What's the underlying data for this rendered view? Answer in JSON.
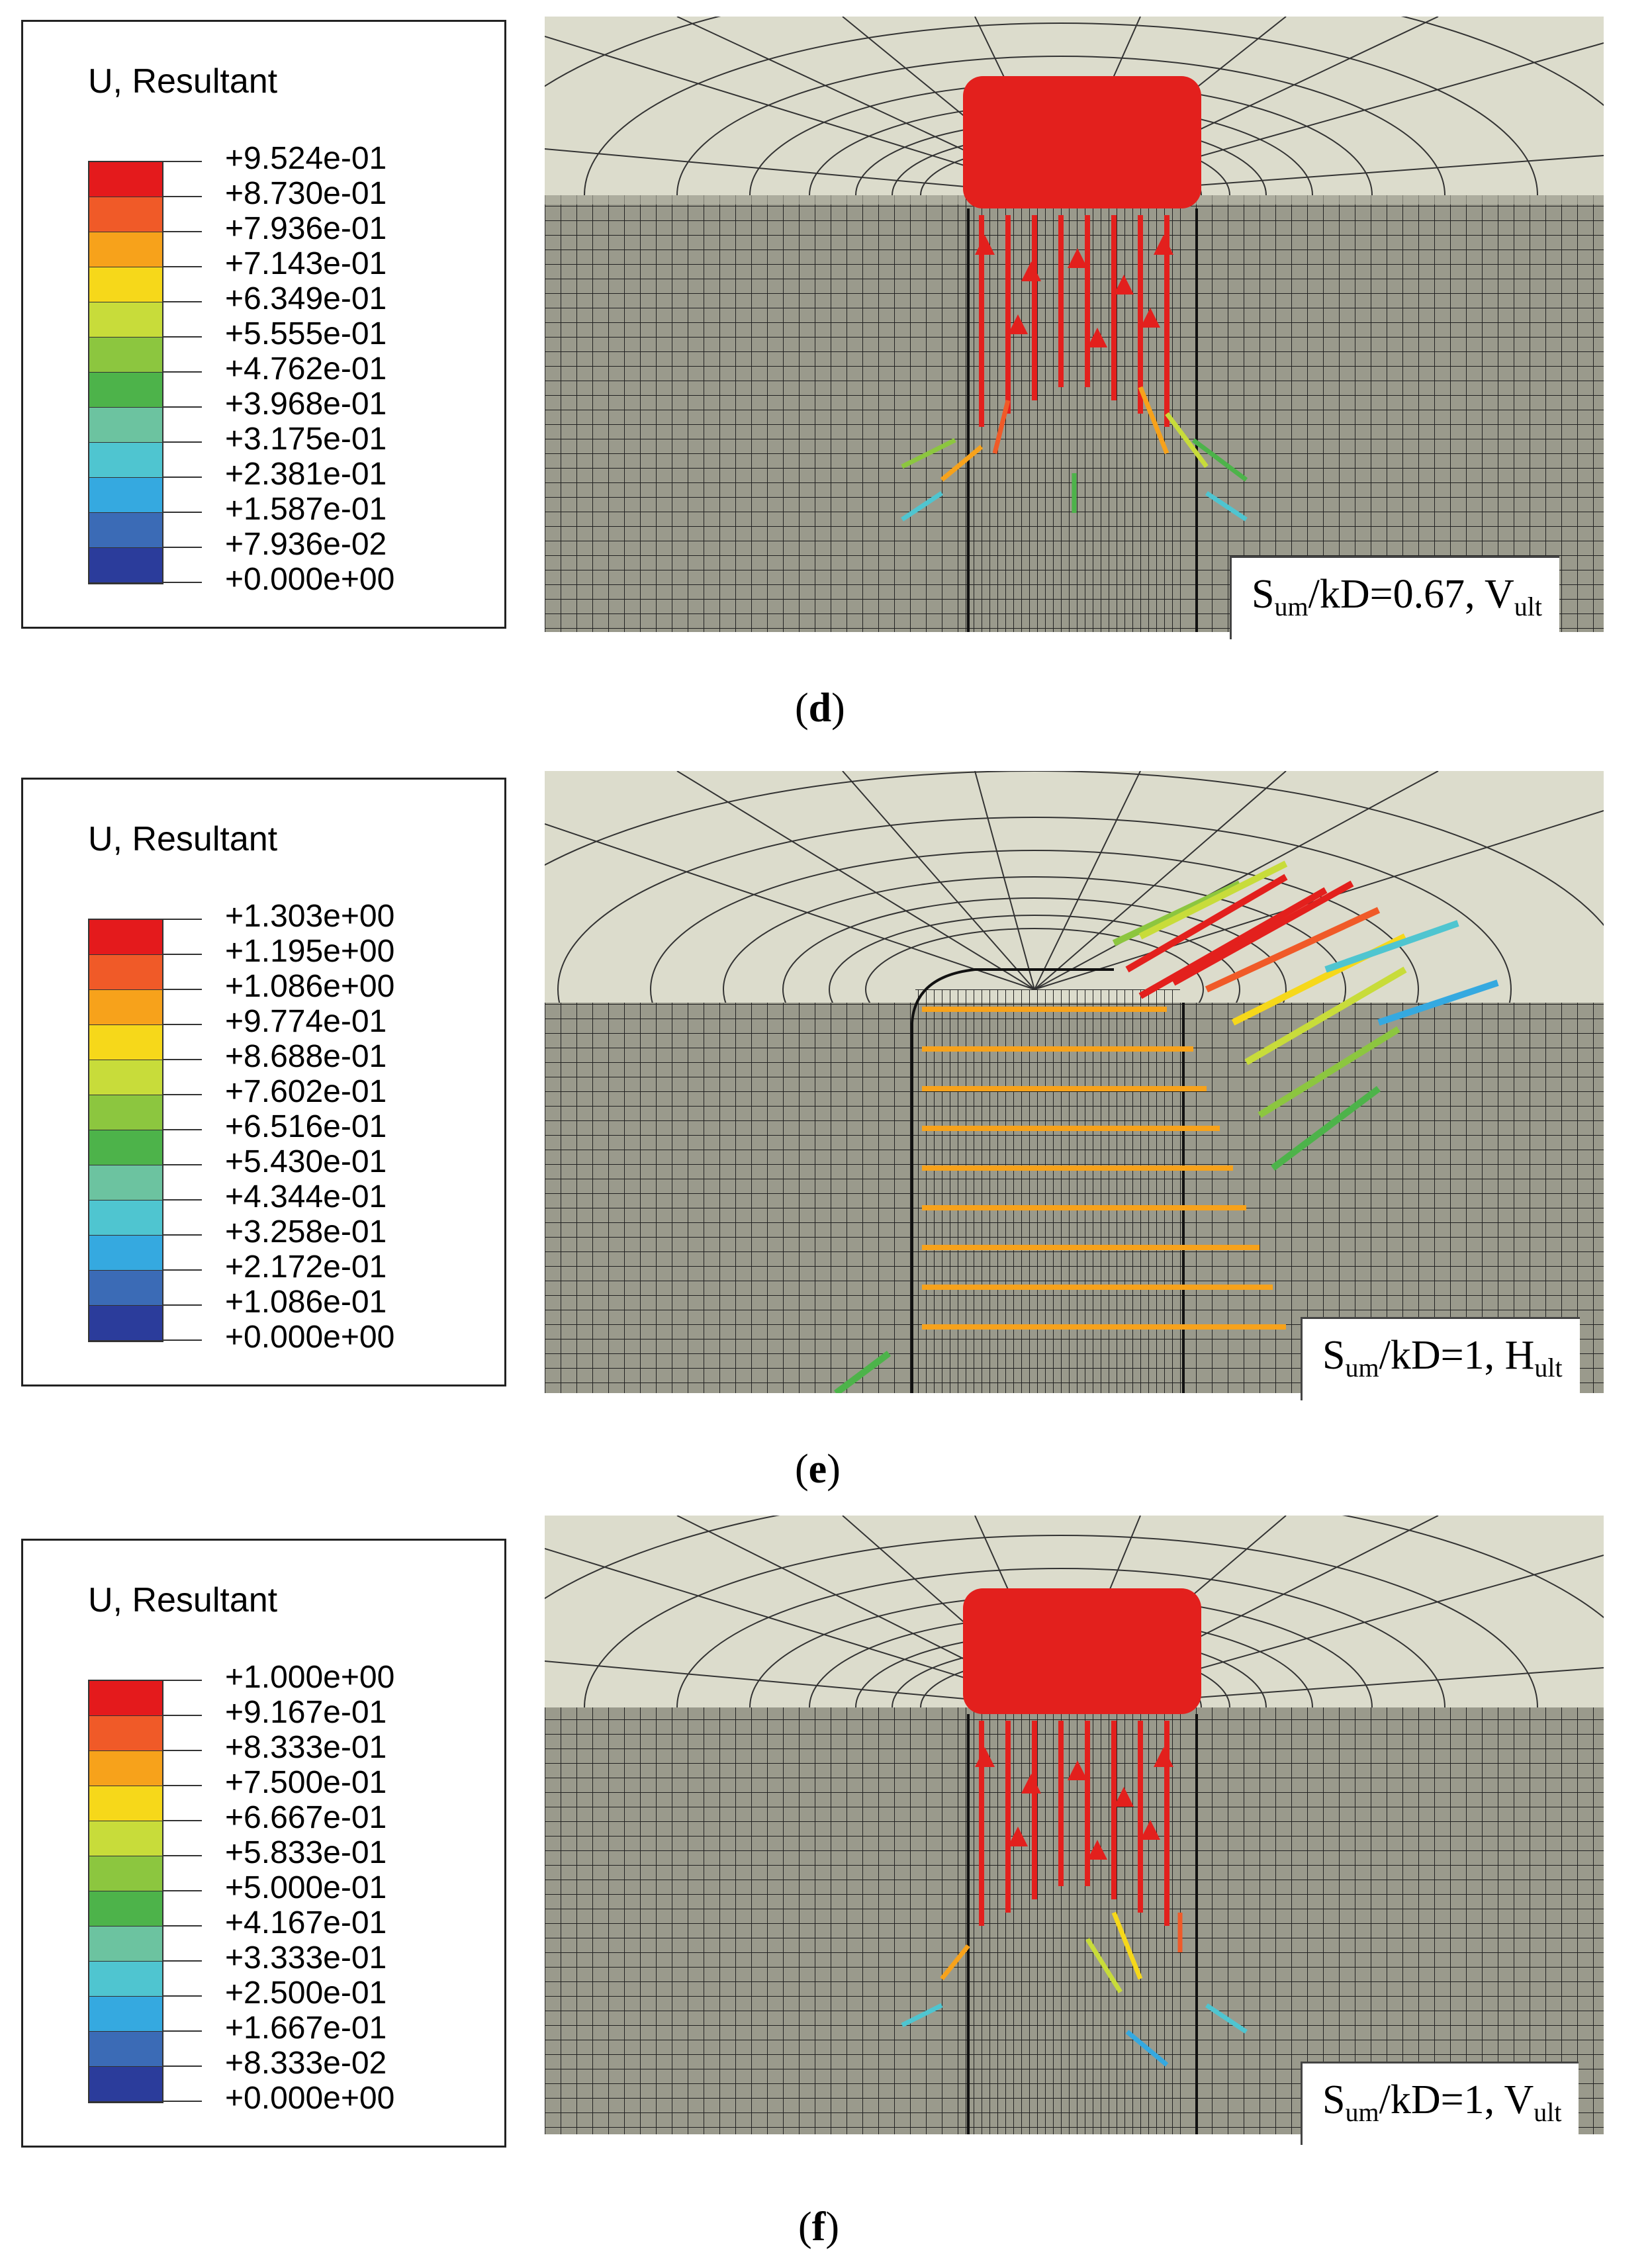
{
  "panels": [
    {
      "id": "d",
      "legend_title": "U, Resultant",
      "legend_values": [
        "+9.524e-01",
        "+8.730e-01",
        "+7.936e-01",
        "+7.143e-01",
        "+6.349e-01",
        "+5.555e-01",
        "+4.762e-01",
        "+3.968e-01",
        "+3.175e-01",
        "+2.381e-01",
        "+1.587e-01",
        "+7.936e-02",
        "+0.000e+00"
      ],
      "caption": {
        "S": "S",
        "sub1": "um",
        "mid": "/kD=0.67, ",
        "V": "V",
        "sub2": "ult"
      },
      "label_open": "(",
      "label": "d",
      "label_close": ")"
    },
    {
      "id": "e",
      "legend_title": "U, Resultant",
      "legend_values": [
        "+1.303e+00",
        "+1.195e+00",
        "+1.086e+00",
        "+9.774e-01",
        "+8.688e-01",
        "+7.602e-01",
        "+6.516e-01",
        "+5.430e-01",
        "+4.344e-01",
        "+3.258e-01",
        "+2.172e-01",
        "+1.086e-01",
        "+0.000e+00"
      ],
      "caption": {
        "S": "S",
        "sub1": "um",
        "mid": "/kD=1, ",
        "V": "H",
        "sub2": "ult"
      },
      "label_open": "(",
      "label": "e",
      "label_close": ")"
    },
    {
      "id": "f",
      "legend_title": "U, Resultant",
      "legend_values": [
        "+1.000e+00",
        "+9.167e-01",
        "+8.333e-01",
        "+7.500e-01",
        "+6.667e-01",
        "+5.833e-01",
        "+5.000e-01",
        "+4.167e-01",
        "+3.333e-01",
        "+2.500e-01",
        "+1.667e-01",
        "+8.333e-02",
        "+0.000e+00"
      ],
      "caption": {
        "S": "S",
        "sub1": "um",
        "mid": "/kD=1, ",
        "V": "V",
        "sub2": "ult"
      },
      "label_open": "(",
      "label": "f",
      "label_close": ")"
    }
  ],
  "colors": {
    "contour_bands": [
      "#e41a1c",
      "#f05a28",
      "#f7a21b",
      "#f6d81a",
      "#c8dc3a",
      "#8cc63f",
      "#4db34a",
      "#3cae62",
      "#6cc3a0",
      "#4fc5d0",
      "#35a9e0",
      "#3b6bb6",
      "#2b3c9b"
    ],
    "mesh_background": "#d8d8c8",
    "mesh_line": "#1a1a1a"
  }
}
